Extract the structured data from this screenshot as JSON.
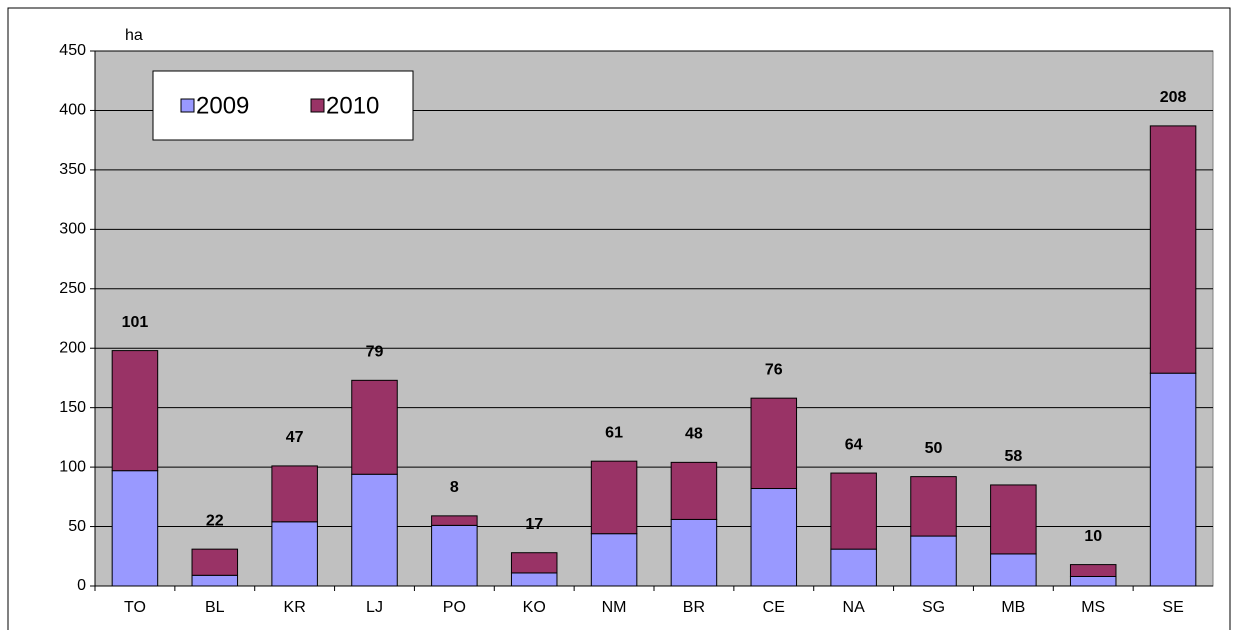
{
  "chart_data": {
    "type": "bar",
    "stacked": true,
    "y_label": "ha",
    "categories": [
      "TO",
      "BL",
      "KR",
      "LJ",
      "PO",
      "KO",
      "NM",
      "BR",
      "CE",
      "NA",
      "SG",
      "MB",
      "MS",
      "SE"
    ],
    "series": [
      {
        "name": "2009",
        "color": "#9999ff",
        "values": [
          97,
          9,
          54,
          94,
          51,
          11,
          44,
          56,
          82,
          31,
          42,
          27,
          8,
          179
        ]
      },
      {
        "name": "2010",
        "color": "#993366",
        "values": [
          101,
          22,
          47,
          79,
          8,
          17,
          61,
          48,
          76,
          64,
          50,
          58,
          10,
          208
        ]
      }
    ],
    "data_labels_series": 1,
    "ylim": [
      0,
      450
    ],
    "yticks": [
      0,
      50,
      100,
      150,
      200,
      250,
      300,
      350,
      400,
      450
    ],
    "grid": true,
    "plot_background": "#c0c0c0",
    "legend_position": "top-left"
  }
}
